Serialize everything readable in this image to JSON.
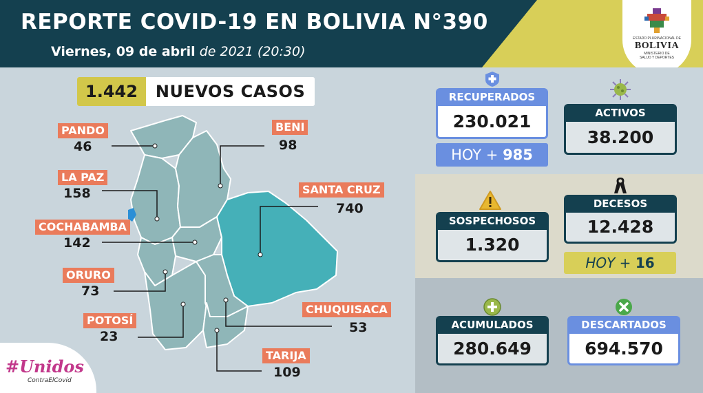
{
  "header": {
    "title": "REPORTE COVID-19 EN BOLIVIA N°390",
    "date_bold": "Viernes, 09 de abril",
    "date_italic": "de 2021 (20:30)",
    "logo": {
      "small_text": "ESTADO PLURINACIONAL DE",
      "name": "BOLIVIA",
      "ministry_line1": "MINISTERIO DE",
      "ministry_line2": "SALUD Y DEPORTES"
    }
  },
  "nuevos_casos": {
    "value": "1.442",
    "label": "NUEVOS CASOS"
  },
  "departments": [
    {
      "name": "PANDO",
      "value": "46"
    },
    {
      "name": "LA PAZ",
      "value": "158"
    },
    {
      "name": "COCHABAMBA",
      "value": "142"
    },
    {
      "name": "ORURO",
      "value": "73"
    },
    {
      "name": "POTOSÍ",
      "value": "23"
    },
    {
      "name": "BENI",
      "value": "98"
    },
    {
      "name": "SANTA CRUZ",
      "value": "740"
    },
    {
      "name": "CHUQUISACA",
      "value": "53"
    },
    {
      "name": "TARIJA",
      "value": "109"
    }
  ],
  "stats": {
    "recuperados": {
      "label": "RECUPERADOS",
      "value": "230.021",
      "hoy_label": "HOY +",
      "hoy_value": "985"
    },
    "activos": {
      "label": "ACTIVOS",
      "value": "38.200"
    },
    "sospechosos": {
      "label": "SOSPECHOSOS",
      "value": "1.320"
    },
    "decesos": {
      "label": "DECESOS",
      "value": "12.428",
      "hoy_label": "HOY +",
      "hoy_value": "16"
    },
    "acumulados": {
      "label": "ACUMULADOS",
      "value": "280.649"
    },
    "descartados": {
      "label": "DESCARTADOS",
      "value": "694.570"
    }
  },
  "campaign": {
    "title": "#Unidos",
    "subtitle": "ContraElCovid"
  },
  "colors": {
    "navy": "#14404f",
    "yellow": "#d8cf58",
    "blue": "#6a8fe0",
    "coral": "#ea7b5b",
    "map_teal": "#8fb6b8",
    "map_highlight": "#45b0b8"
  },
  "icons": [
    "medical-plus-icon",
    "virus-icon",
    "warning-icon",
    "mourning-ribbon-icon",
    "plus-circle-icon",
    "x-circle-icon"
  ]
}
